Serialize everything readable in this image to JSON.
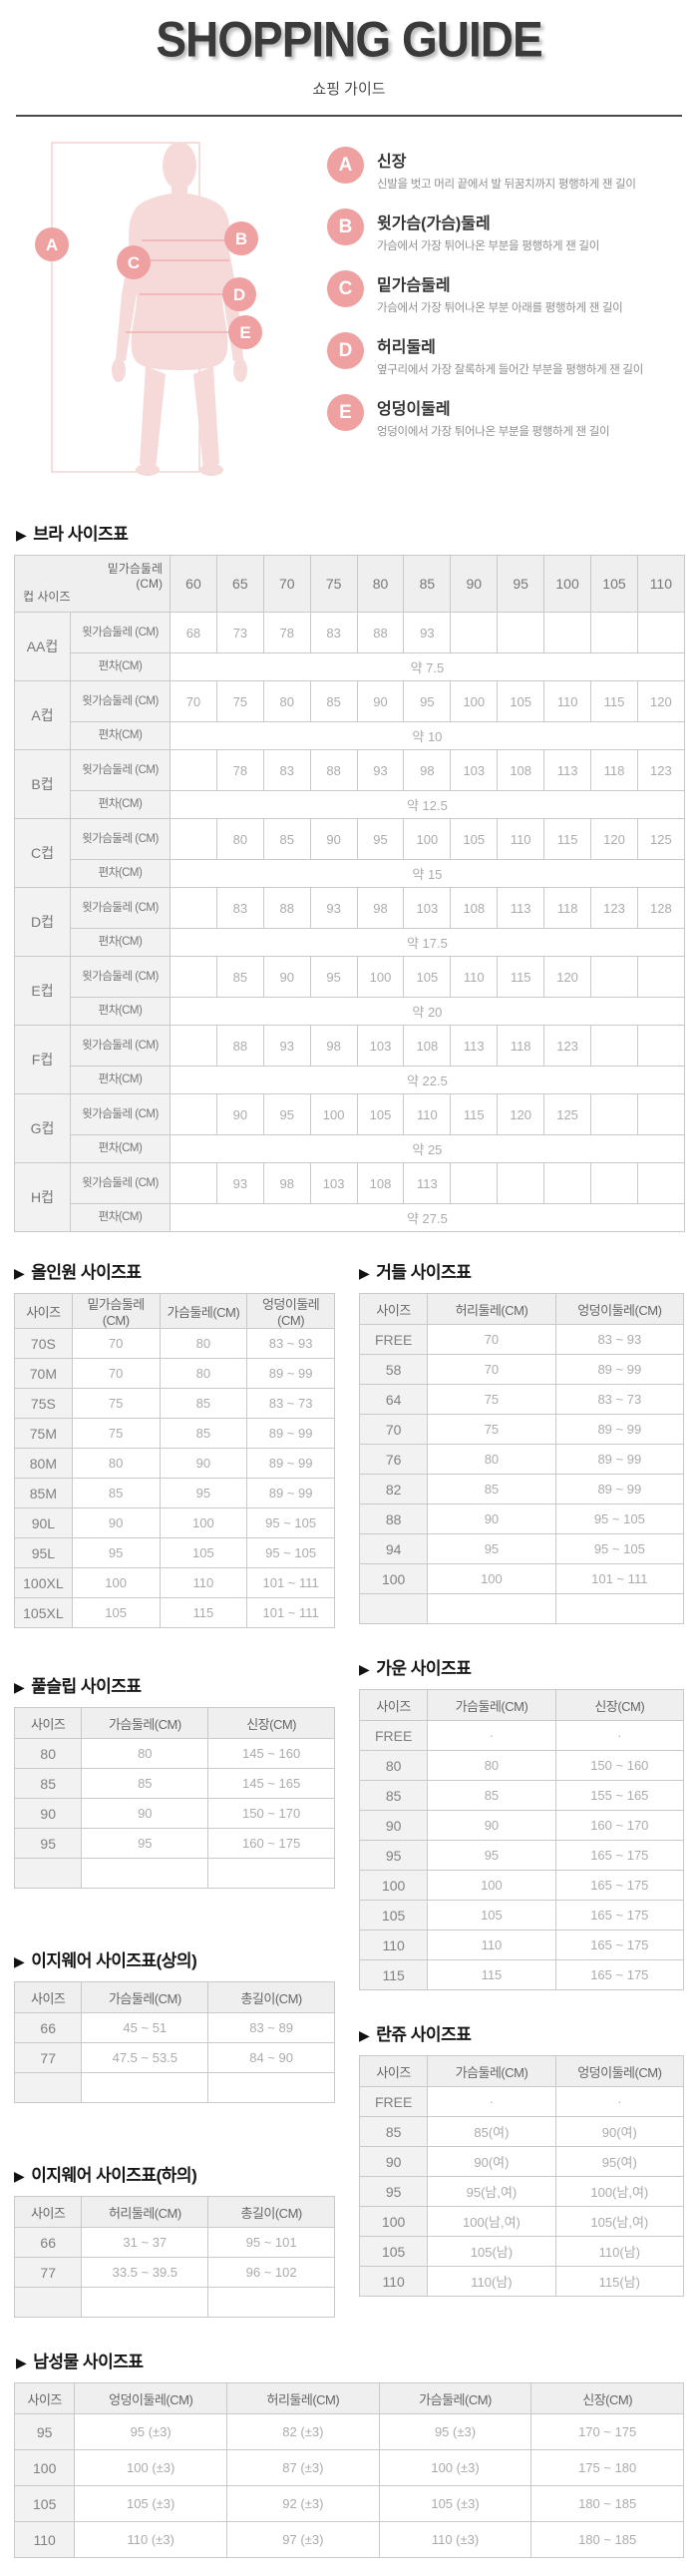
{
  "header": {
    "title": "SHOPPING GUIDE",
    "subtitle": "쇼핑 가이드"
  },
  "measure_guide": {
    "items": [
      {
        "letter": "A",
        "title": "신장",
        "desc": "신발을 벗고 머리 끝에서 발 뒤꿈치까지 평행하게 잰 길이"
      },
      {
        "letter": "B",
        "title": "윗가슴(가슴)둘레",
        "desc": "가슴에서 가장 튀어나온 부분을 평행하게 잰 길이"
      },
      {
        "letter": "C",
        "title": "밑가슴둘레",
        "desc": "가슴에서 가장 튀어나온 부분 아래를 평행하게 잰 길이"
      },
      {
        "letter": "D",
        "title": "허리둘레",
        "desc": "옆구리에서 가장 잘록하게 들어간 부분을 평행하게 잰 길이"
      },
      {
        "letter": "E",
        "title": "엉덩이둘레",
        "desc": "엉덩이에서 가장 튀어나온 부분을 평행하게 잰 길이"
      }
    ],
    "colors": {
      "circle": "#efa0a0",
      "silhouette": "#f6dada",
      "lines": "#eeb0b0"
    }
  },
  "bra_table": {
    "heading": "브라 사이즈표",
    "corner_top": "밑가슴둘레 (CM)",
    "corner_bottom": "컵 사이즈",
    "band_sizes": [
      "60",
      "65",
      "70",
      "75",
      "80",
      "85",
      "90",
      "95",
      "100",
      "105",
      "110"
    ],
    "row_label_bust": "윗가슴둘레 (CM)",
    "row_label_dev": "편차(CM)",
    "cups": [
      {
        "name": "AA컵",
        "bust": [
          "68",
          "73",
          "78",
          "83",
          "88",
          "93",
          "",
          "",
          "",
          "",
          ""
        ],
        "dev": "약 7.5"
      },
      {
        "name": "A컵",
        "bust": [
          "70",
          "75",
          "80",
          "85",
          "90",
          "95",
          "100",
          "105",
          "110",
          "115",
          "120"
        ],
        "dev": "약 10"
      },
      {
        "name": "B컵",
        "bust": [
          "",
          "78",
          "83",
          "88",
          "93",
          "98",
          "103",
          "108",
          "113",
          "118",
          "123"
        ],
        "dev": "약 12.5"
      },
      {
        "name": "C컵",
        "bust": [
          "",
          "80",
          "85",
          "90",
          "95",
          "100",
          "105",
          "110",
          "115",
          "120",
          "125"
        ],
        "dev": "약 15"
      },
      {
        "name": "D컵",
        "bust": [
          "",
          "83",
          "88",
          "93",
          "98",
          "103",
          "108",
          "113",
          "118",
          "123",
          "128"
        ],
        "dev": "약 17.5"
      },
      {
        "name": "E컵",
        "bust": [
          "",
          "85",
          "90",
          "95",
          "100",
          "105",
          "110",
          "115",
          "120",
          "",
          ""
        ],
        "dev": "약 20"
      },
      {
        "name": "F컵",
        "bust": [
          "",
          "88",
          "93",
          "98",
          "103",
          "108",
          "113",
          "118",
          "123",
          "",
          ""
        ],
        "dev": "약 22.5"
      },
      {
        "name": "G컵",
        "bust": [
          "",
          "90",
          "95",
          "100",
          "105",
          "110",
          "115",
          "120",
          "125",
          "",
          ""
        ],
        "dev": "약 25"
      },
      {
        "name": "H컵",
        "bust": [
          "",
          "93",
          "98",
          "103",
          "108",
          "113",
          "",
          "",
          "",
          "",
          ""
        ],
        "dev": "약 27.5"
      }
    ]
  },
  "tables": {
    "allinone": {
      "heading": "올인원 사이즈표",
      "columns": [
        "사이즈",
        "밑가슴둘레(CM)",
        "가슴둘레(CM)",
        "엉덩이둘레(CM)"
      ],
      "rows": [
        [
          "70S",
          "70",
          "80",
          "83 ~ 93"
        ],
        [
          "70M",
          "70",
          "80",
          "89 ~ 99"
        ],
        [
          "75S",
          "75",
          "85",
          "83 ~ 73"
        ],
        [
          "75M",
          "75",
          "85",
          "89 ~ 99"
        ],
        [
          "80M",
          "80",
          "90",
          "89 ~ 99"
        ],
        [
          "85M",
          "85",
          "95",
          "89 ~ 99"
        ],
        [
          "90L",
          "90",
          "100",
          "95 ~ 105"
        ],
        [
          "95L",
          "95",
          "105",
          "95 ~ 105"
        ],
        [
          "100XL",
          "100",
          "110",
          "101 ~ 111"
        ],
        [
          "105XL",
          "105",
          "115",
          "101 ~ 111"
        ]
      ]
    },
    "girdle": {
      "heading": "거들 사이즈표",
      "columns": [
        "사이즈",
        "허리둘레(CM)",
        "엉덩이둘레(CM)"
      ],
      "rows": [
        [
          "FREE",
          "70",
          "83 ~ 93"
        ],
        [
          "58",
          "70",
          "89 ~ 99"
        ],
        [
          "64",
          "75",
          "83 ~ 73"
        ],
        [
          "70",
          "75",
          "89 ~ 99"
        ],
        [
          "76",
          "80",
          "89 ~ 99"
        ],
        [
          "82",
          "85",
          "89 ~ 99"
        ],
        [
          "88",
          "90",
          "95 ~ 105"
        ],
        [
          "94",
          "95",
          "95 ~ 105"
        ],
        [
          "100",
          "100",
          "101 ~ 111"
        ],
        [
          "",
          "",
          ""
        ]
      ]
    },
    "fullslip": {
      "heading": "풀슬립 사이즈표",
      "columns": [
        "사이즈",
        "가슴둘레(CM)",
        "신장(CM)"
      ],
      "rows": [
        [
          "80",
          "80",
          "145 ~ 160"
        ],
        [
          "85",
          "85",
          "145 ~ 165"
        ],
        [
          "90",
          "90",
          "150 ~ 170"
        ],
        [
          "95",
          "95",
          "160 ~ 175"
        ],
        [
          "",
          "",
          ""
        ]
      ]
    },
    "gown": {
      "heading": "가운 사이즈표",
      "columns": [
        "사이즈",
        "가슴둘레(CM)",
        "신장(CM)"
      ],
      "rows": [
        [
          "FREE",
          "·",
          "·"
        ],
        [
          "80",
          "80",
          "150 ~ 160"
        ],
        [
          "85",
          "85",
          "155 ~ 165"
        ],
        [
          "90",
          "90",
          "160 ~ 170"
        ],
        [
          "95",
          "95",
          "165 ~ 175"
        ],
        [
          "100",
          "100",
          "165 ~ 175"
        ],
        [
          "105",
          "105",
          "165 ~ 175"
        ],
        [
          "110",
          "110",
          "165 ~ 175"
        ],
        [
          "115",
          "115",
          "165 ~ 175"
        ]
      ]
    },
    "easy_top": {
      "heading": "이지웨어 사이즈표(상의)",
      "columns": [
        "사이즈",
        "가슴둘레(CM)",
        "총길이(CM)"
      ],
      "rows": [
        [
          "66",
          "45 ~ 51",
          "83 ~ 89"
        ],
        [
          "77",
          "47.5 ~ 53.5",
          "84 ~ 90"
        ],
        [
          "",
          "",
          ""
        ]
      ]
    },
    "lanju": {
      "heading": "란쥬 사이즈표",
      "columns": [
        "사이즈",
        "가슴둘레(CM)",
        "엉덩이둘레(CM)"
      ],
      "rows": [
        [
          "FREE",
          "·",
          "·"
        ],
        [
          "85",
          "85(여)",
          "90(여)"
        ],
        [
          "90",
          "90(여)",
          "95(여)"
        ],
        [
          "95",
          "95(남,여)",
          "100(남,여)"
        ],
        [
          "100",
          "100(남,여)",
          "105(남,여)"
        ],
        [
          "105",
          "105(남)",
          "110(남)"
        ],
        [
          "110",
          "110(남)",
          "115(남)"
        ]
      ]
    },
    "easy_bottom": {
      "heading": "이지웨어 사이즈표(하의)",
      "columns": [
        "사이즈",
        "허리둘레(CM)",
        "총길이(CM)"
      ],
      "rows": [
        [
          "66",
          "31 ~ 37",
          "95 ~ 101"
        ],
        [
          "77",
          "33.5 ~ 39.5",
          "96 ~ 102"
        ],
        [
          "",
          "",
          ""
        ]
      ]
    },
    "mens": {
      "heading": "남성물 사이즈표",
      "columns": [
        "사이즈",
        "엉덩이둘레(CM)",
        "허리둘레(CM)",
        "가슴둘레(CM)",
        "신장(CM)"
      ],
      "rows": [
        [
          "95",
          "95 (±3)",
          "82 (±3)",
          "95 (±3)",
          "170 ~ 175"
        ],
        [
          "100",
          "100 (±3)",
          "87 (±3)",
          "100 (±3)",
          "175 ~ 180"
        ],
        [
          "105",
          "105 (±3)",
          "92 (±3)",
          "105 (±3)",
          "180 ~ 185"
        ],
        [
          "110",
          "110 (±3)",
          "97 (±3)",
          "110 (±3)",
          "180 ~ 185"
        ]
      ]
    }
  }
}
